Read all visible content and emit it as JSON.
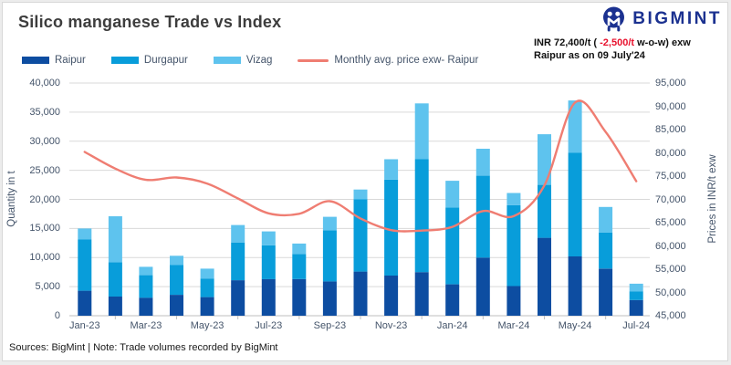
{
  "header": {
    "title": "Silico manganese Trade vs Index",
    "logo_text": "BIGMINT"
  },
  "annotation": {
    "pre": "INR 72,400/t ( ",
    "delta": "-2,500/t",
    "post": " w-o-w) exw",
    "line2": "Raipur as on 09 July'24",
    "delta_color": "#e8112d"
  },
  "footer": {
    "text": "Sources: BigMint | Note: Trade volumes recorded by BigMint"
  },
  "colors": {
    "raipur": "#0d4da1",
    "durgapur": "#089dda",
    "vizag": "#5ec3ee",
    "price_line": "#ef7d72",
    "logo_navy": "#1b3190",
    "grid": "#d9d9d9",
    "axis_line": "#bfbfbf",
    "axis_text": "#44546a",
    "title_text": "#3d3d3d"
  },
  "chart_data": {
    "type": "combo: stacked bar + line",
    "title": "Silico manganese Trade vs Index",
    "categories": [
      "Jan-23",
      "Feb-23",
      "Mar-23",
      "Apr-23",
      "May-23",
      "Jun-23",
      "Jul-23",
      "Aug-23",
      "Sep-23",
      "Oct-23",
      "Nov-23",
      "Dec-23",
      "Jan-24",
      "Feb-24",
      "Mar-24",
      "Apr-24",
      "May-24",
      "Jun-24",
      "Jul-24"
    ],
    "bar_series": [
      {
        "name": "Raipur",
        "color": "#0d4da1",
        "values": [
          4300,
          3300,
          3100,
          3600,
          3200,
          6100,
          6300,
          6300,
          5900,
          7600,
          6900,
          7500,
          5400,
          10000,
          5100,
          13400,
          10200,
          8100,
          2700
        ]
      },
      {
        "name": "Durgapur",
        "color": "#089dda",
        "values": [
          8800,
          5900,
          3900,
          5100,
          3200,
          6500,
          5800,
          4300,
          8800,
          12400,
          16500,
          19400,
          13200,
          14100,
          13900,
          9100,
          17800,
          6200,
          1500
        ]
      },
      {
        "name": "Vizag",
        "color": "#5ec3ee",
        "values": [
          1900,
          7900,
          1400,
          1600,
          1700,
          3000,
          2400,
          1800,
          2300,
          1700,
          3500,
          9600,
          4600,
          4600,
          2100,
          8700,
          9000,
          4400,
          1300
        ]
      }
    ],
    "line_series": {
      "name": "Monthly avg. price exw- Raipur",
      "color": "#ef7d72",
      "values": [
        80200,
        76600,
        74200,
        74700,
        73400,
        70200,
        67000,
        66900,
        69600,
        65900,
        63400,
        63300,
        64100,
        67500,
        66400,
        73000,
        90800,
        84500,
        73900
      ]
    },
    "left_axis": {
      "title": "Quantity in t",
      "min": 0,
      "max": 40000,
      "step": 5000,
      "tick_labels": [
        "0",
        "5,000",
        "10,000",
        "15,000",
        "20,000",
        "25,000",
        "30,000",
        "35,000",
        "40,000"
      ]
    },
    "right_axis": {
      "title": "Prices in INR/t exw",
      "min": 45000,
      "max": 95000,
      "step": 5000,
      "tick_labels": [
        "45,000",
        "50,000",
        "55,000",
        "60,000",
        "65,000",
        "70,000",
        "75,000",
        "80,000",
        "85,000",
        "90,000",
        "95,000"
      ]
    },
    "x_label_every": 2,
    "grid": true,
    "legend_position": "top-left"
  }
}
